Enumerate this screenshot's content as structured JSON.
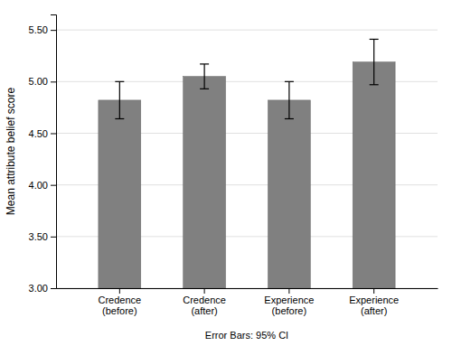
{
  "chart_data": {
    "type": "bar",
    "categories": [
      "Credence\n(before)",
      "Credence\n(after)",
      "Experience\n(before)",
      "Experience\n(after)"
    ],
    "values": [
      4.82,
      5.05,
      4.82,
      5.19
    ],
    "errors": [
      0.18,
      0.12,
      0.18,
      0.22
    ],
    "color": "#808080",
    "ylabel": "Mean attribute belief score",
    "ylim": [
      3.0,
      5.65
    ],
    "yticks": [
      {
        "value": 3.0,
        "label": "3.00"
      },
      {
        "value": 3.5,
        "label": "3.50"
      },
      {
        "value": 4.0,
        "label": "4.00"
      },
      {
        "value": 4.5,
        "label": "4.50"
      },
      {
        "value": 5.0,
        "label": "5.00"
      },
      {
        "value": 5.5,
        "label": "5.50"
      }
    ],
    "annotation": "Error Bars: 95% CI",
    "grid": true
  }
}
